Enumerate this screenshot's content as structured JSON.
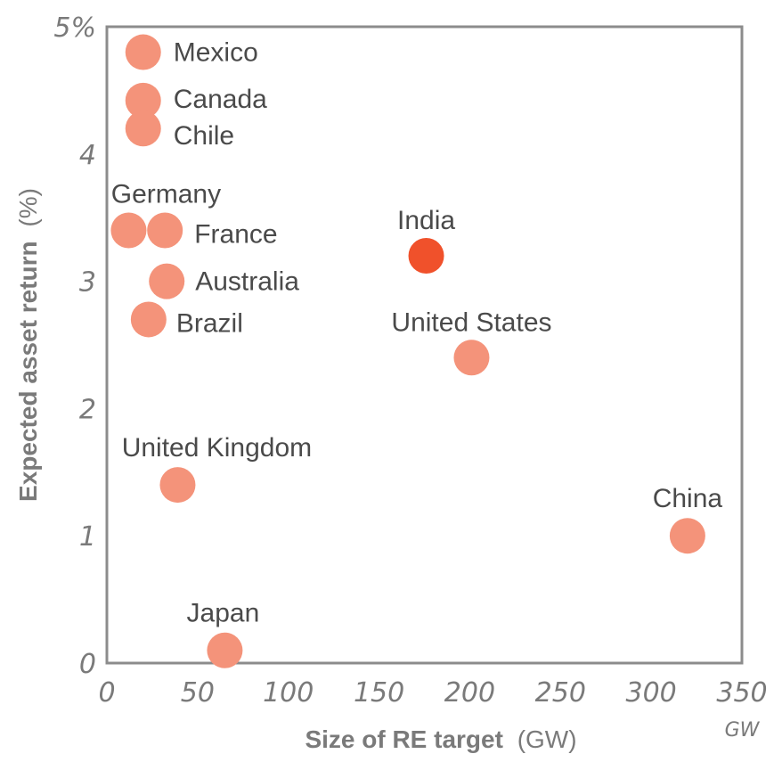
{
  "chart_data": {
    "type": "scatter",
    "xlabel_bold": "Size of RE target",
    "xlabel_rest": "(GW)",
    "ylabel_bold": "Expected asset return",
    "ylabel_rest": "(%)",
    "x_unit": "GW",
    "xlim": [
      0,
      350
    ],
    "ylim": [
      0,
      5
    ],
    "x_ticks": [
      "0",
      "50",
      "100",
      "150",
      "200",
      "250",
      "300",
      "350"
    ],
    "x_tick_values": [
      0,
      50,
      100,
      150,
      200,
      250,
      300,
      350
    ],
    "y_ticks": [
      "0",
      "1",
      "2",
      "3",
      "4",
      "5%"
    ],
    "y_tick_values": [
      0,
      1,
      2,
      3,
      4,
      5
    ],
    "grid": false,
    "colors": {
      "point": "#f4937a",
      "highlight": "#f0512b",
      "frame": "#8c8c8c"
    },
    "points": [
      {
        "name": "Mexico",
        "x": 20,
        "y": 4.8,
        "highlight": false
      },
      {
        "name": "Canada",
        "x": 20,
        "y": 4.42,
        "highlight": false
      },
      {
        "name": "Chile",
        "x": 20,
        "y": 4.2,
        "highlight": false
      },
      {
        "name": "Germany",
        "x": 12,
        "y": 3.4,
        "highlight": false
      },
      {
        "name": "France",
        "x": 32,
        "y": 3.4,
        "highlight": false
      },
      {
        "name": "Australia",
        "x": 33,
        "y": 3.0,
        "highlight": false
      },
      {
        "name": "Brazil",
        "x": 23,
        "y": 2.7,
        "highlight": false
      },
      {
        "name": "India",
        "x": 176,
        "y": 3.2,
        "highlight": true
      },
      {
        "name": "United States",
        "x": 201,
        "y": 2.4,
        "highlight": false
      },
      {
        "name": "United Kingdom",
        "x": 39,
        "y": 1.4,
        "highlight": false
      },
      {
        "name": "China",
        "x": 320,
        "y": 1.0,
        "highlight": false
      },
      {
        "name": "Japan",
        "x": 65,
        "y": 0.1,
        "highlight": false
      }
    ]
  }
}
